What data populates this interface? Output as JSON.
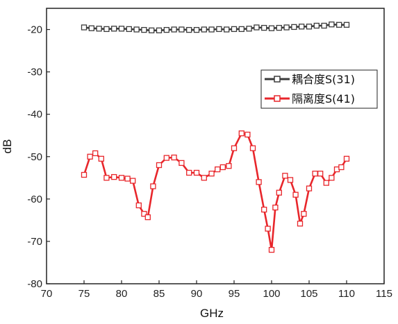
{
  "chart_data": {
    "type": "line",
    "xlabel": "GHz",
    "ylabel": "dB",
    "xlim": [
      70,
      115
    ],
    "ylim": [
      -80,
      -15
    ],
    "x_ticks": [
      70,
      75,
      80,
      85,
      90,
      95,
      100,
      105,
      110,
      115
    ],
    "y_ticks": [
      -80,
      -70,
      -60,
      -50,
      -40,
      -30,
      -20
    ],
    "grid": false,
    "legend_position": "right",
    "series": [
      {
        "name": "耦合度S(31)",
        "color": "#3a3a3a",
        "marker": "open-square",
        "x": [
          75,
          76,
          77,
          78,
          79,
          80,
          81,
          82,
          83,
          84,
          85,
          86,
          87,
          88,
          89,
          90,
          91,
          92,
          93,
          94,
          95,
          96,
          97,
          98,
          99,
          100,
          101,
          102,
          103,
          104,
          105,
          106,
          107,
          108,
          109,
          110
        ],
        "y": [
          -19.5,
          -19.7,
          -19.8,
          -19.9,
          -19.8,
          -19.8,
          -19.9,
          -20.0,
          -20.1,
          -20.2,
          -20.2,
          -20.1,
          -20.0,
          -20.0,
          -20.1,
          -20.1,
          -20.0,
          -20.0,
          -19.9,
          -20.0,
          -19.9,
          -19.9,
          -19.8,
          -19.5,
          -19.6,
          -19.7,
          -19.6,
          -19.5,
          -19.4,
          -19.3,
          -19.3,
          -19.1,
          -19.1,
          -18.8,
          -18.9,
          -18.9
        ]
      },
      {
        "name": "隔离度S(41)",
        "color": "#e8262b",
        "marker": "open-square",
        "x": [
          75,
          75.8,
          76.5,
          77.3,
          78,
          79,
          80,
          80.8,
          81.5,
          82.3,
          83,
          83.5,
          84.2,
          85,
          86,
          87,
          88,
          89,
          90,
          91,
          92,
          92.8,
          93.5,
          94.3,
          95,
          96,
          96.8,
          97.5,
          98.3,
          99,
          99.5,
          100,
          100.5,
          101,
          101.8,
          102.5,
          103.2,
          103.8,
          104.3,
          105,
          105.8,
          106.5,
          107.3,
          108,
          108.7,
          109.3,
          110
        ],
        "y": [
          -54.3,
          -50.0,
          -49.2,
          -50.5,
          -55.0,
          -54.8,
          -55.0,
          -55.2,
          -55.7,
          -61.5,
          -63.5,
          -64.3,
          -57.0,
          -52.0,
          -50.3,
          -50.2,
          -51.5,
          -53.8,
          -53.8,
          -55.0,
          -54.0,
          -53.0,
          -52.5,
          -52.2,
          -48.0,
          -44.5,
          -44.8,
          -48.0,
          -56.0,
          -62.5,
          -67.0,
          -72.0,
          -62.0,
          -58.5,
          -54.5,
          -55.5,
          -59.0,
          -65.8,
          -63.5,
          -57.5,
          -54.0,
          -54.0,
          -56.2,
          -55.0,
          -53.0,
          -52.5,
          -50.5
        ]
      }
    ]
  }
}
